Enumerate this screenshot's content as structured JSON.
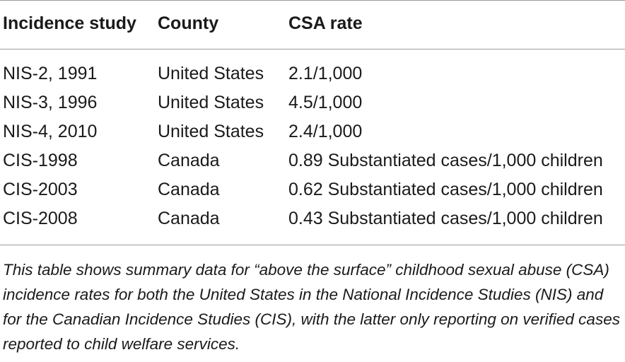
{
  "table": {
    "headers": [
      "Incidence study",
      "County",
      "CSA rate"
    ],
    "rows": [
      [
        "NIS-2, 1991",
        "United States",
        "2.1/1,000"
      ],
      [
        "NIS-3, 1996",
        "United States",
        "4.5/1,000"
      ],
      [
        "NIS-4, 2010",
        "United States",
        "2.4/1,000"
      ],
      [
        "CIS-1998",
        "Canada",
        "0.89 Substantiated cases/1,000 children"
      ],
      [
        "CIS-2003",
        "Canada",
        "0.62 Substantiated cases/1,000 children"
      ],
      [
        "CIS-2008",
        "Canada",
        "0.43 Substantiated cases/1,000 children"
      ]
    ]
  },
  "caption": "This table shows summary data for “above the surface” childhood sexual abuse (CSA) incidence rates for both the United States in the National Incidence Studies (NIS) and for the Canadian Incidence Studies (CIS), with the latter only reporting on verified cases reported to child welfare services."
}
